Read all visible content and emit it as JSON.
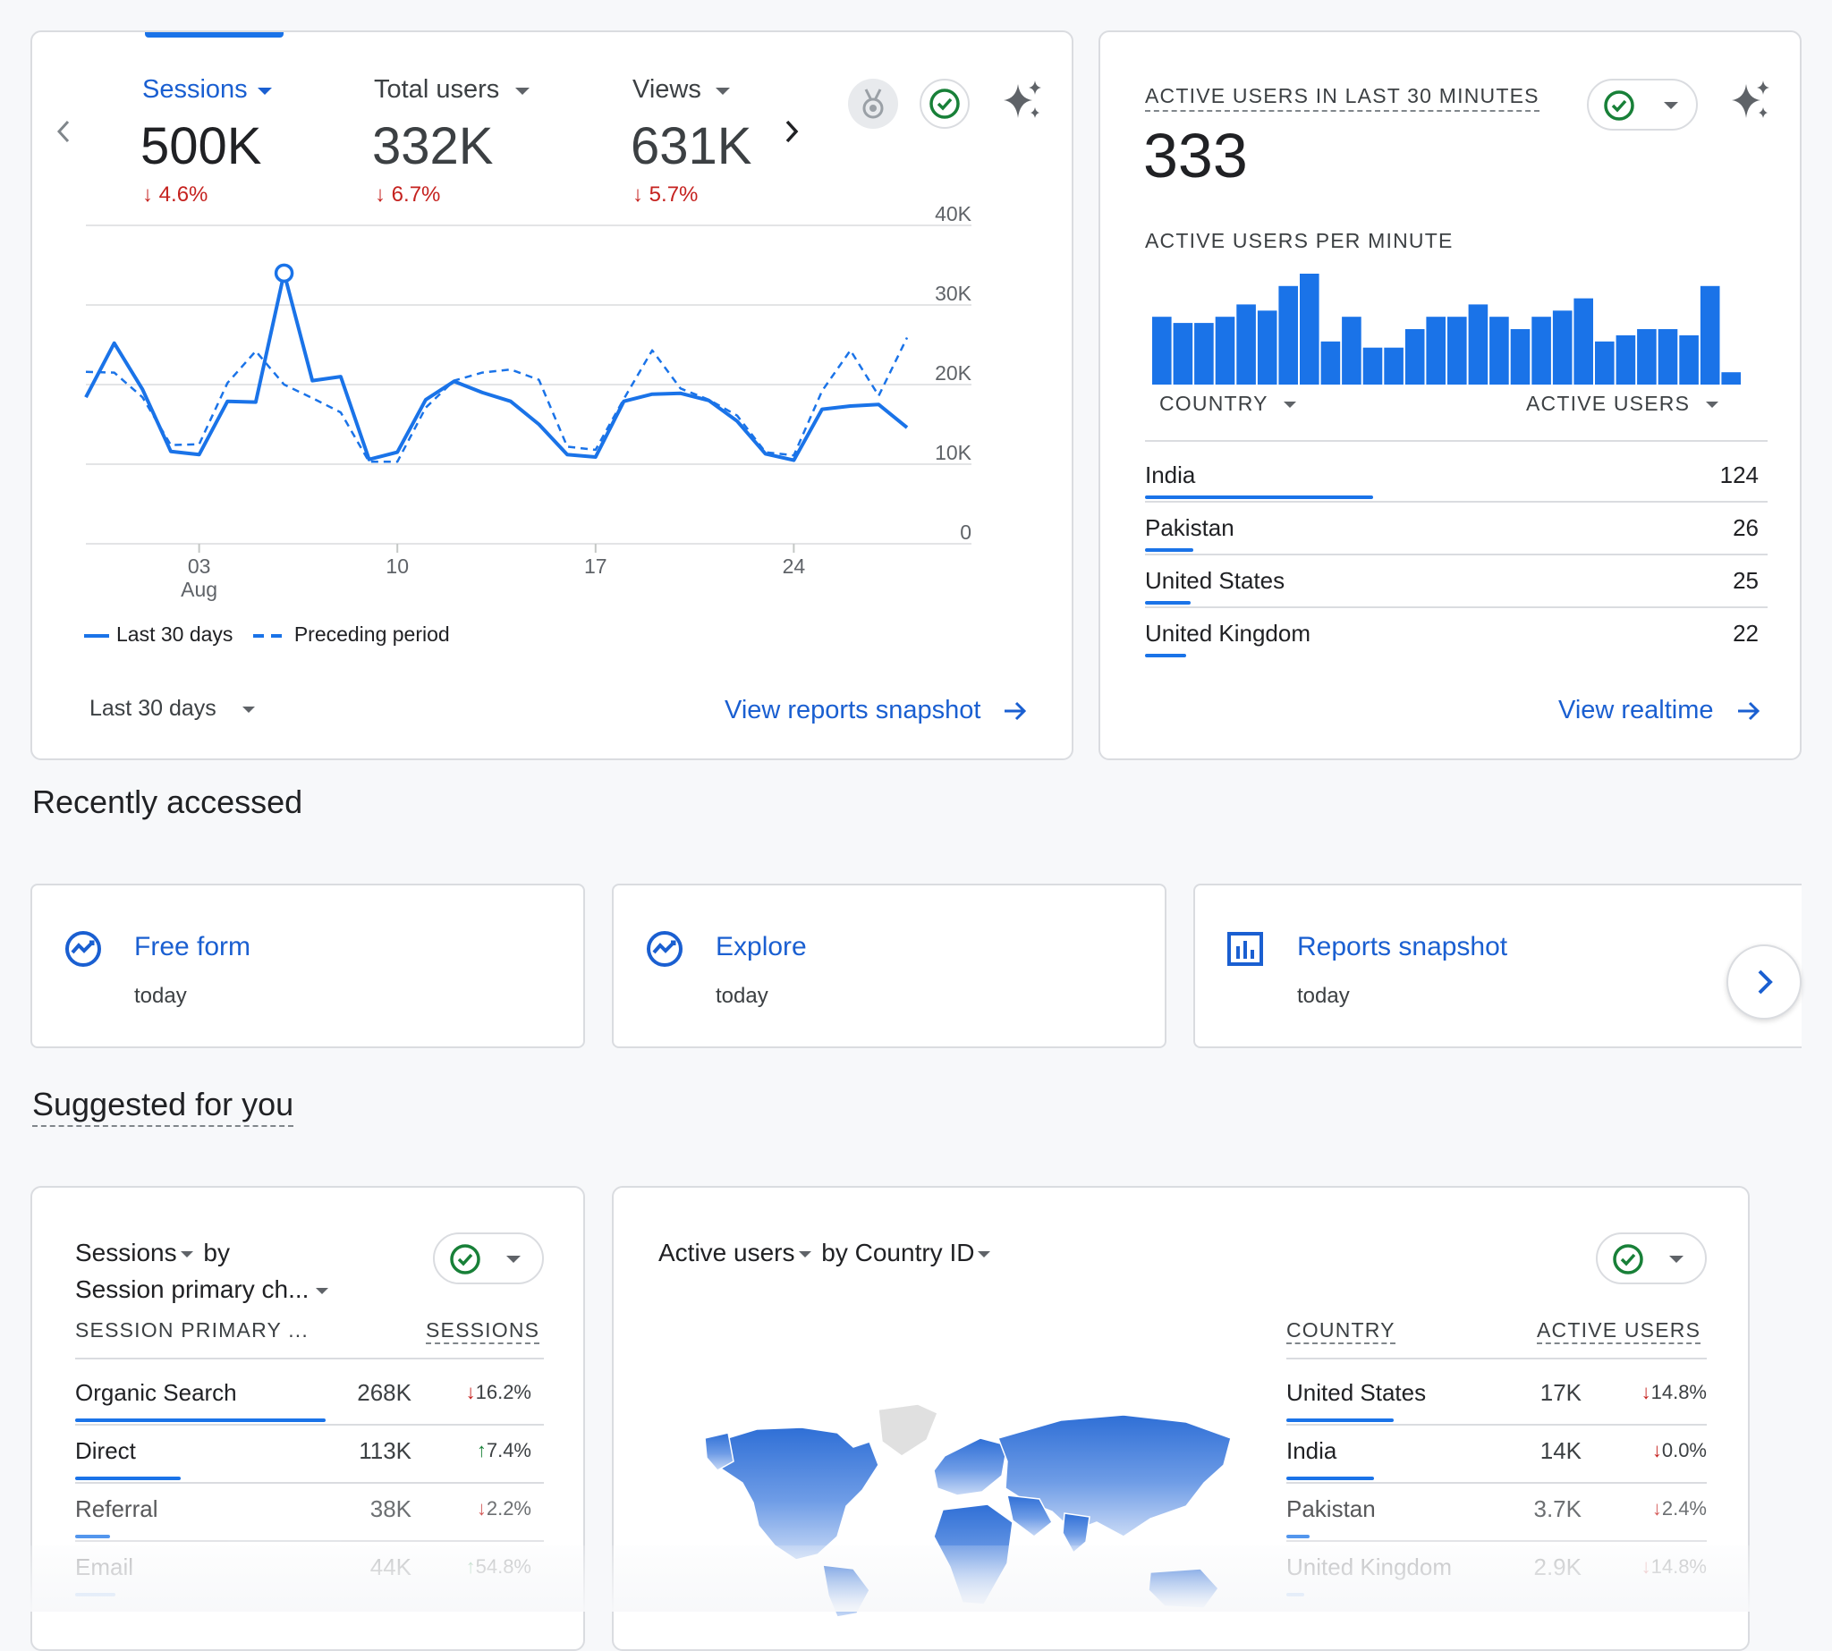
{
  "overview": {
    "metrics": [
      {
        "label": "Sessions",
        "value": "500K",
        "change": "4.6%"
      },
      {
        "label": "Total users",
        "value": "332K",
        "change": "6.7%"
      },
      {
        "label": "Views",
        "value": "631K",
        "change": "5.7%"
      }
    ],
    "legend_current": "Last 30 days",
    "legend_previous": "Preceding period",
    "date_range": "Last 30 days",
    "link": "View reports snapshot"
  },
  "chart_data": {
    "type": "line",
    "x_ticks": [
      {
        "day": 3,
        "label": "03",
        "sublabel": "Aug"
      },
      {
        "day": 10,
        "label": "10"
      },
      {
        "day": 17,
        "label": "17"
      },
      {
        "day": 24,
        "label": "24"
      }
    ],
    "y_ticks": [
      "0",
      "10K",
      "20K",
      "30K",
      "40K"
    ],
    "ylim": [
      0,
      40000
    ],
    "x_start_day": 30,
    "series": [
      {
        "name": "Last 30 days",
        "style": "solid",
        "values": [
          18400,
          25200,
          19400,
          11600,
          11200,
          17900,
          17800,
          34000,
          20500,
          21000,
          10600,
          11500,
          18100,
          20400,
          19000,
          17900,
          15000,
          11200,
          10900,
          17900,
          18800,
          18900,
          18000,
          15400,
          11300,
          10500,
          16900,
          17300,
          17500,
          14600
        ]
      },
      {
        "name": "Preceding period",
        "style": "dashed",
        "values": [
          21600,
          21500,
          18400,
          12400,
          12500,
          20200,
          24200,
          20000,
          18300,
          16500,
          10300,
          10300,
          17100,
          20500,
          21500,
          21900,
          20600,
          12200,
          11800,
          18200,
          24300,
          19500,
          18100,
          16100,
          11500,
          11100,
          19200,
          24300,
          18600,
          25900
        ]
      }
    ],
    "highlight_index": 7
  },
  "realtime": {
    "title": "ACTIVE USERS IN LAST 30 MINUTES",
    "value": "333",
    "per_minute_label": "ACTIVE USERS PER MINUTE",
    "per_minute_bars": [
      11,
      10,
      10,
      11,
      13,
      12,
      16,
      18,
      7,
      11,
      6,
      6,
      9,
      11,
      11,
      13,
      11,
      9,
      11,
      12,
      14,
      7,
      8,
      9,
      9,
      8,
      16,
      2
    ],
    "col_country": "COUNTRY",
    "col_users": "ACTIVE USERS",
    "rows": [
      {
        "country": "India",
        "users": "124",
        "share": 1.0
      },
      {
        "country": "Pakistan",
        "users": "26",
        "share": 0.21
      },
      {
        "country": "United States",
        "users": "25",
        "share": 0.2
      },
      {
        "country": "United Kingdom",
        "users": "22",
        "share": 0.18
      }
    ],
    "link": "View realtime"
  },
  "recent": {
    "heading": "Recently accessed",
    "tiles": [
      {
        "title": "Free form",
        "sub": "today",
        "icon": "explore-icon"
      },
      {
        "title": "Explore",
        "sub": "today",
        "icon": "explore-icon"
      },
      {
        "title": "Reports snapshot",
        "sub": "today",
        "icon": "bar-chart-icon"
      }
    ]
  },
  "suggested": {
    "heading": "Suggested for you",
    "card1": {
      "title_metric": "Sessions",
      "title_by": "by",
      "title_dim": "Session primary ch...",
      "col_dim": "SESSION PRIMARY ...",
      "col_metric": "SESSIONS",
      "rows": [
        {
          "name": "Organic Search",
          "value": "268K",
          "change": "16.2%",
          "dir": "down",
          "share": 1.0
        },
        {
          "name": "Direct",
          "value": "113K",
          "change": "7.4%",
          "dir": "up",
          "share": 0.42
        },
        {
          "name": "Referral",
          "value": "38K",
          "change": "2.2%",
          "dir": "down",
          "share": 0.14
        },
        {
          "name": "Email",
          "value": "44K",
          "change": "54.8%",
          "dir": "up",
          "share": 0.16
        }
      ]
    },
    "card2": {
      "title_metric": "Active users",
      "title_by": "by",
      "title_dim": "Country ID",
      "col_dim": "COUNTRY",
      "col_metric": "ACTIVE USERS",
      "rows": [
        {
          "name": "United States",
          "value": "17K",
          "change": "14.8%",
          "dir": "down",
          "share": 1.0
        },
        {
          "name": "India",
          "value": "14K",
          "change": "0.0%",
          "dir": "down",
          "share": 0.82
        },
        {
          "name": "Pakistan",
          "value": "3.7K",
          "change": "2.4%",
          "dir": "down",
          "share": 0.22
        },
        {
          "name": "United Kingdom",
          "value": "2.9K",
          "change": "14.8%",
          "dir": "down",
          "share": 0.17
        }
      ]
    }
  },
  "colors": {
    "accent": "#1a73e8",
    "link": "#1a5fd1",
    "down": "#c5221f",
    "up": "#188038"
  }
}
